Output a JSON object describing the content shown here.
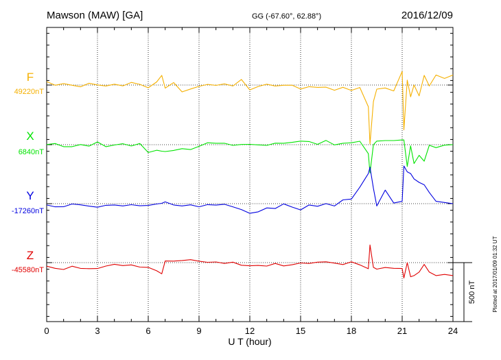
{
  "header": {
    "station": "Mawson (MAW)  [GA]",
    "coords": "GG (-67.60°,  62.88°)",
    "date": "2016/12/09"
  },
  "footer": {
    "plotted": "Plotted at 2017/01/09 01:32 UT"
  },
  "chart_data": {
    "type": "line",
    "title": "Mawson (MAW)  [GA]",
    "xlabel": "U T (hour)",
    "ylabel": "",
    "xlim": [
      0,
      24
    ],
    "xticks": [
      0,
      3,
      6,
      9,
      12,
      15,
      18,
      21,
      24
    ],
    "x_tick_labels": [
      "0",
      "3",
      "6",
      "9",
      "12",
      "15",
      "18",
      "21",
      "24"
    ],
    "grid": true,
    "scale_bar": {
      "label": "500 nT",
      "value_nT": 500
    },
    "colors": {
      "F": "#f5b000",
      "X": "#00e400",
      "Y": "#0000e0",
      "Z": "#e00000"
    },
    "x": [
      0,
      0.5,
      1,
      1.5,
      2,
      2.5,
      3,
      3.5,
      4,
      4.5,
      5,
      5.5,
      6,
      6.5,
      6.8,
      7,
      7.5,
      8,
      8.5,
      9,
      9.5,
      10,
      10.5,
      11,
      11.5,
      12,
      12.5,
      13,
      13.5,
      14,
      14.5,
      15,
      15.5,
      16,
      16.5,
      17,
      17.5,
      18,
      18.5,
      19,
      19.1,
      19.3,
      19.5,
      20,
      20.5,
      21,
      21.1,
      21.3,
      21.5,
      21.7,
      22,
      22.3,
      22.6,
      23,
      23.5,
      24
    ],
    "series": [
      {
        "name": "F",
        "baseline_label": "49220nT",
        "values": [
          49249,
          49218,
          49232,
          49218,
          49205,
          49235,
          49221,
          49212,
          49227,
          49213,
          49242,
          49226,
          49197,
          49246,
          49302,
          49194,
          49241,
          49162,
          49186,
          49209,
          49225,
          49217,
          49230,
          49212,
          49267,
          49179,
          49208,
          49227,
          49212,
          49218,
          49218,
          49186,
          49206,
          49200,
          49202,
          49176,
          49201,
          49174,
          49199,
          49036,
          48720,
          49080,
          49185,
          49195,
          49170,
          49335,
          48840,
          49262,
          49120,
          49220,
          49128,
          49302,
          49212,
          49305,
          49276,
          49305
        ]
      },
      {
        "name": "X",
        "baseline_label": "6840nT",
        "values": [
          6841,
          6850,
          6823,
          6823,
          6841,
          6828,
          6863,
          6823,
          6837,
          6848,
          6829,
          6850,
          6774,
          6793,
          6785,
          6782,
          6791,
          6806,
          6799,
          6826,
          6856,
          6852,
          6852,
          6834,
          6842,
          6843,
          6838,
          6834,
          6853,
          6852,
          6860,
          6870,
          6867,
          6843,
          6876,
          6838,
          6852,
          6856,
          6869,
          6764,
          6600,
          6840,
          6870,
          6875,
          6875,
          6880,
          6880,
          6655,
          6830,
          6680,
          6750,
          6700,
          6835,
          6815,
          6836,
          6840
        ]
      },
      {
        "name": "Y",
        "baseline_label": "-17260nT",
        "values": [
          -17271,
          -17287,
          -17286,
          -17263,
          -17270,
          -17281,
          -17290,
          -17274,
          -17271,
          -17279,
          -17269,
          -17278,
          -17275,
          -17263,
          -17257,
          -17245,
          -17271,
          -17279,
          -17270,
          -17287,
          -17268,
          -17272,
          -17265,
          -17287,
          -17310,
          -17342,
          -17329,
          -17296,
          -17301,
          -17262,
          -17289,
          -17313,
          -17271,
          -17282,
          -17260,
          -17280,
          -17228,
          -17221,
          -17120,
          -17005,
          -16950,
          -17130,
          -17280,
          -17145,
          -17255,
          -17240,
          -16940,
          -16990,
          -17005,
          -17050,
          -17080,
          -17100,
          -17165,
          -17240,
          -17250,
          -17260
        ]
      },
      {
        "name": "Z",
        "baseline_label": "-45580nT",
        "values": [
          -45610,
          -45628,
          -45638,
          -45610,
          -45629,
          -45631,
          -45630,
          -45609,
          -45594,
          -45605,
          -45599,
          -45618,
          -45620,
          -45649,
          -45675,
          -45566,
          -45567,
          -45562,
          -45555,
          -45568,
          -45577,
          -45574,
          -45587,
          -45576,
          -45602,
          -45607,
          -45604,
          -45609,
          -45587,
          -45608,
          -45598,
          -45583,
          -45587,
          -45576,
          -45573,
          -45584,
          -45596,
          -45573,
          -45599,
          -45632,
          -45430,
          -45620,
          -45635,
          -45621,
          -45628,
          -45630,
          -45710,
          -45580,
          -45700,
          -45690,
          -45660,
          -45595,
          -45660,
          -45690,
          -45680,
          -45690
        ]
      }
    ]
  }
}
